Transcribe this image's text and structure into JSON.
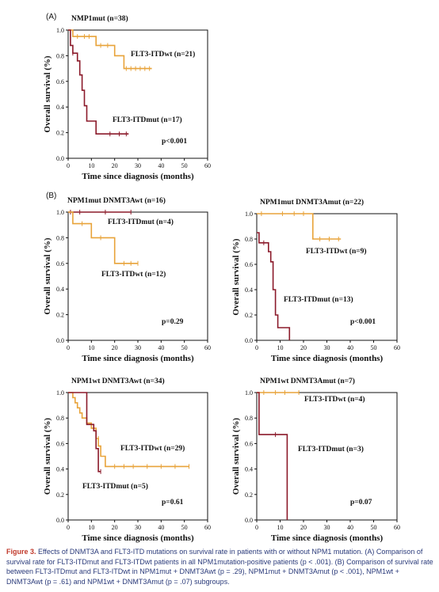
{
  "panel_letters": {
    "a": "(A)",
    "b": "(B)"
  },
  "colors": {
    "wt": "#e8a33a",
    "mut": "#8b1a2a",
    "axis": "#111111",
    "caption_accent": "#c0392b",
    "caption_text": "#2a3a7a"
  },
  "caption": {
    "lead": "Figure 3.",
    "text": "Effects of DNMT3A and FLT3-ITD mutations on survival rate in patients with or without NPM1 mutation. (A) Comparison of survival rate for FLT3-ITDmut and FLT3-ITDwt patients in all NPM1mutation-positive patients (p < .001). (B) Comparison of survival rate between FLT3-ITDmut and FLT3-ITDwt in NPM1mut + DNMT3Awt (p = .29), NPM1mut + DNMT3Amut (p < .001), NPM1wt + DNMT3Awt (p = .61) and NPM1wt + DNMT3Amut (p = .07) subgroups."
  },
  "chart_data": [
    {
      "type": "line",
      "title": "NMP1mut (n=38)",
      "xlabel": "Time since diagnosis (months)",
      "ylabel": "Overall survival (%)",
      "xlim": [
        0,
        60
      ],
      "ylim": [
        0,
        1.0
      ],
      "xticks": [
        "0",
        "10",
        "20",
        "30",
        "40",
        "50",
        "60"
      ],
      "yticks": [
        "0.0",
        "0.2",
        "0.4",
        "0.6",
        "0.8",
        "1.0"
      ],
      "pvalue": "p<0.001",
      "series": [
        {
          "name": "FLT3-ITDwt (n=21)",
          "color": "#e8a33a",
          "x": [
            0,
            2,
            2,
            12,
            12,
            20,
            20,
            24,
            24,
            36
          ],
          "y": [
            1.0,
            1.0,
            0.95,
            0.95,
            0.88,
            0.88,
            0.8,
            0.8,
            0.7,
            0.7
          ],
          "censored": [
            [
              4,
              0.95
            ],
            [
              7,
              0.95
            ],
            [
              9,
              0.95
            ],
            [
              14,
              0.88
            ],
            [
              17,
              0.88
            ],
            [
              25,
              0.7
            ],
            [
              27,
              0.7
            ],
            [
              29,
              0.7
            ],
            [
              31,
              0.7
            ],
            [
              33,
              0.7
            ],
            [
              35,
              0.7
            ]
          ]
        },
        {
          "name": "FLT3-ITDmut (n=17)",
          "color": "#8b1a2a",
          "x": [
            0,
            1,
            1,
            2,
            2,
            4,
            4,
            5,
            5,
            6,
            6,
            7,
            7,
            8,
            8,
            12,
            12,
            26
          ],
          "y": [
            1.0,
            1.0,
            0.88,
            0.88,
            0.82,
            0.82,
            0.76,
            0.76,
            0.65,
            0.65,
            0.53,
            0.53,
            0.41,
            0.41,
            0.29,
            0.29,
            0.19,
            0.19
          ],
          "censored": [
            [
              2,
              0.82
            ],
            [
              18,
              0.19
            ],
            [
              22,
              0.19
            ],
            [
              25,
              0.19
            ]
          ]
        }
      ]
    },
    {
      "type": "line",
      "title": "NPM1mut DNMT3Awt (n=16)",
      "xlabel": "Time since diagnosis (months)",
      "ylabel": "Overall survival (%)",
      "xlim": [
        0,
        60
      ],
      "ylim": [
        0,
        1.0
      ],
      "xticks": [
        "0",
        "10",
        "20",
        "30",
        "40",
        "50",
        "60"
      ],
      "yticks": [
        "0.0",
        "0.2",
        "0.4",
        "0.6",
        "0.8",
        "1.0"
      ],
      "pvalue": "p=0.29",
      "series": [
        {
          "name": "FLT3-ITDmut (n=4)",
          "color": "#8b1a2a",
          "x": [
            0,
            27
          ],
          "y": [
            1.0,
            1.0
          ],
          "censored": [
            [
              1,
              1.0
            ],
            [
              5,
              1.0
            ],
            [
              16,
              1.0
            ],
            [
              27,
              1.0
            ]
          ]
        },
        {
          "name": "FLT3-ITDwt (n=12)",
          "color": "#e8a33a",
          "x": [
            0,
            2,
            2,
            10,
            10,
            20,
            20,
            30
          ],
          "y": [
            1.0,
            1.0,
            0.91,
            0.91,
            0.8,
            0.8,
            0.6,
            0.6
          ],
          "censored": [
            [
              6,
              0.91
            ],
            [
              14,
              0.8
            ],
            [
              24,
              0.6
            ],
            [
              27,
              0.6
            ],
            [
              30,
              0.6
            ]
          ]
        }
      ]
    },
    {
      "type": "line",
      "title": "NPM1mut DNMT3Amut (n=22)",
      "xlabel": "Time since diagnosis (months)",
      "ylabel": "Overall survival (%)",
      "xlim": [
        0,
        60
      ],
      "ylim": [
        0,
        1.0
      ],
      "xticks": [
        "0",
        "10",
        "20",
        "30",
        "40",
        "50",
        "60"
      ],
      "yticks": [
        "0.0",
        "0.2",
        "0.4",
        "0.6",
        "0.8",
        "1.0"
      ],
      "pvalue": "p<0.001",
      "series": [
        {
          "name": "FLT3-ITDwt (n=9)",
          "color": "#e8a33a",
          "x": [
            0,
            24,
            24,
            36
          ],
          "y": [
            1.0,
            1.0,
            0.8,
            0.8
          ],
          "censored": [
            [
              2,
              1.0
            ],
            [
              11,
              1.0
            ],
            [
              16,
              1.0
            ],
            [
              20,
              1.0
            ],
            [
              27,
              0.8
            ],
            [
              31,
              0.8
            ],
            [
              35,
              0.8
            ]
          ]
        },
        {
          "name": "FLT3-ITDmut (n=13)",
          "color": "#8b1a2a",
          "x": [
            0,
            1,
            1,
            5,
            5,
            6,
            6,
            7,
            7,
            8,
            8,
            9,
            9,
            14,
            14
          ],
          "y": [
            0.85,
            0.85,
            0.77,
            0.77,
            0.7,
            0.7,
            0.62,
            0.62,
            0.4,
            0.4,
            0.2,
            0.2,
            0.1,
            0.1,
            0.0
          ],
          "censored": [
            [
              3,
              0.77
            ]
          ]
        }
      ]
    },
    {
      "type": "line",
      "title": "NPM1wt DNMT3Awt (n=34)",
      "xlabel": "Time since diagnosis (months)",
      "ylabel": "Overall survival (%)",
      "xlim": [
        0,
        60
      ],
      "ylim": [
        0,
        1.0
      ],
      "xticks": [
        "0",
        "10",
        "20",
        "30",
        "40",
        "50",
        "60"
      ],
      "yticks": [
        "0.0",
        "0.2",
        "0.4",
        "0.6",
        "0.8",
        "1.0"
      ],
      "pvalue": "p=0.61",
      "series": [
        {
          "name": "FLT3-ITDwt (n=29)",
          "color": "#e8a33a",
          "x": [
            0,
            2,
            2,
            3,
            3,
            4,
            4,
            5,
            5,
            6,
            6,
            8,
            8,
            10,
            10,
            12,
            12,
            13,
            13,
            14,
            14,
            16,
            16,
            52
          ],
          "y": [
            1.0,
            1.0,
            0.96,
            0.96,
            0.92,
            0.92,
            0.88,
            0.88,
            0.84,
            0.84,
            0.8,
            0.8,
            0.76,
            0.76,
            0.72,
            0.72,
            0.64,
            0.64,
            0.58,
            0.58,
            0.5,
            0.5,
            0.42,
            0.42
          ],
          "censored": [
            [
              11,
              0.72
            ],
            [
              13,
              0.64
            ],
            [
              20,
              0.42
            ],
            [
              24,
              0.42
            ],
            [
              28,
              0.42
            ],
            [
              34,
              0.42
            ],
            [
              40,
              0.42
            ],
            [
              46,
              0.42
            ],
            [
              52,
              0.42
            ]
          ]
        },
        {
          "name": "FLT3-ITDmut (n=5)",
          "color": "#8b1a2a",
          "x": [
            0,
            8,
            8,
            11,
            11,
            12,
            12,
            13,
            13,
            14
          ],
          "y": [
            1.0,
            1.0,
            0.75,
            0.75,
            0.7,
            0.7,
            0.56,
            0.56,
            0.38,
            0.38
          ],
          "censored": [
            [
              14,
              0.38
            ]
          ]
        }
      ]
    },
    {
      "type": "line",
      "title": "NPM1wt DNMT3Amut (n=7)",
      "xlabel": "Time since diagnosis (months)",
      "ylabel": "Overall survival (%)",
      "xlim": [
        0,
        60
      ],
      "ylim": [
        0,
        1.0
      ],
      "xticks": [
        "0",
        "10",
        "20",
        "30",
        "40",
        "50",
        "60"
      ],
      "yticks": [
        "0.0",
        "0.2",
        "0.4",
        "0.6",
        "0.8",
        "1.0"
      ],
      "pvalue": "p=0.07",
      "series": [
        {
          "name": "FLT3-ITDwt (n=4)",
          "color": "#e8a33a",
          "x": [
            0,
            18
          ],
          "y": [
            1.0,
            1.0
          ],
          "censored": [
            [
              3,
              1.0
            ],
            [
              8,
              1.0
            ],
            [
              12,
              1.0
            ],
            [
              18,
              1.0
            ]
          ]
        },
        {
          "name": "FLT3-ITDmut (n=3)",
          "color": "#8b1a2a",
          "x": [
            0,
            1,
            1,
            13,
            13
          ],
          "y": [
            1.0,
            1.0,
            0.67,
            0.67,
            0.0
          ],
          "censored": [
            [
              8,
              0.67
            ]
          ]
        }
      ]
    }
  ]
}
